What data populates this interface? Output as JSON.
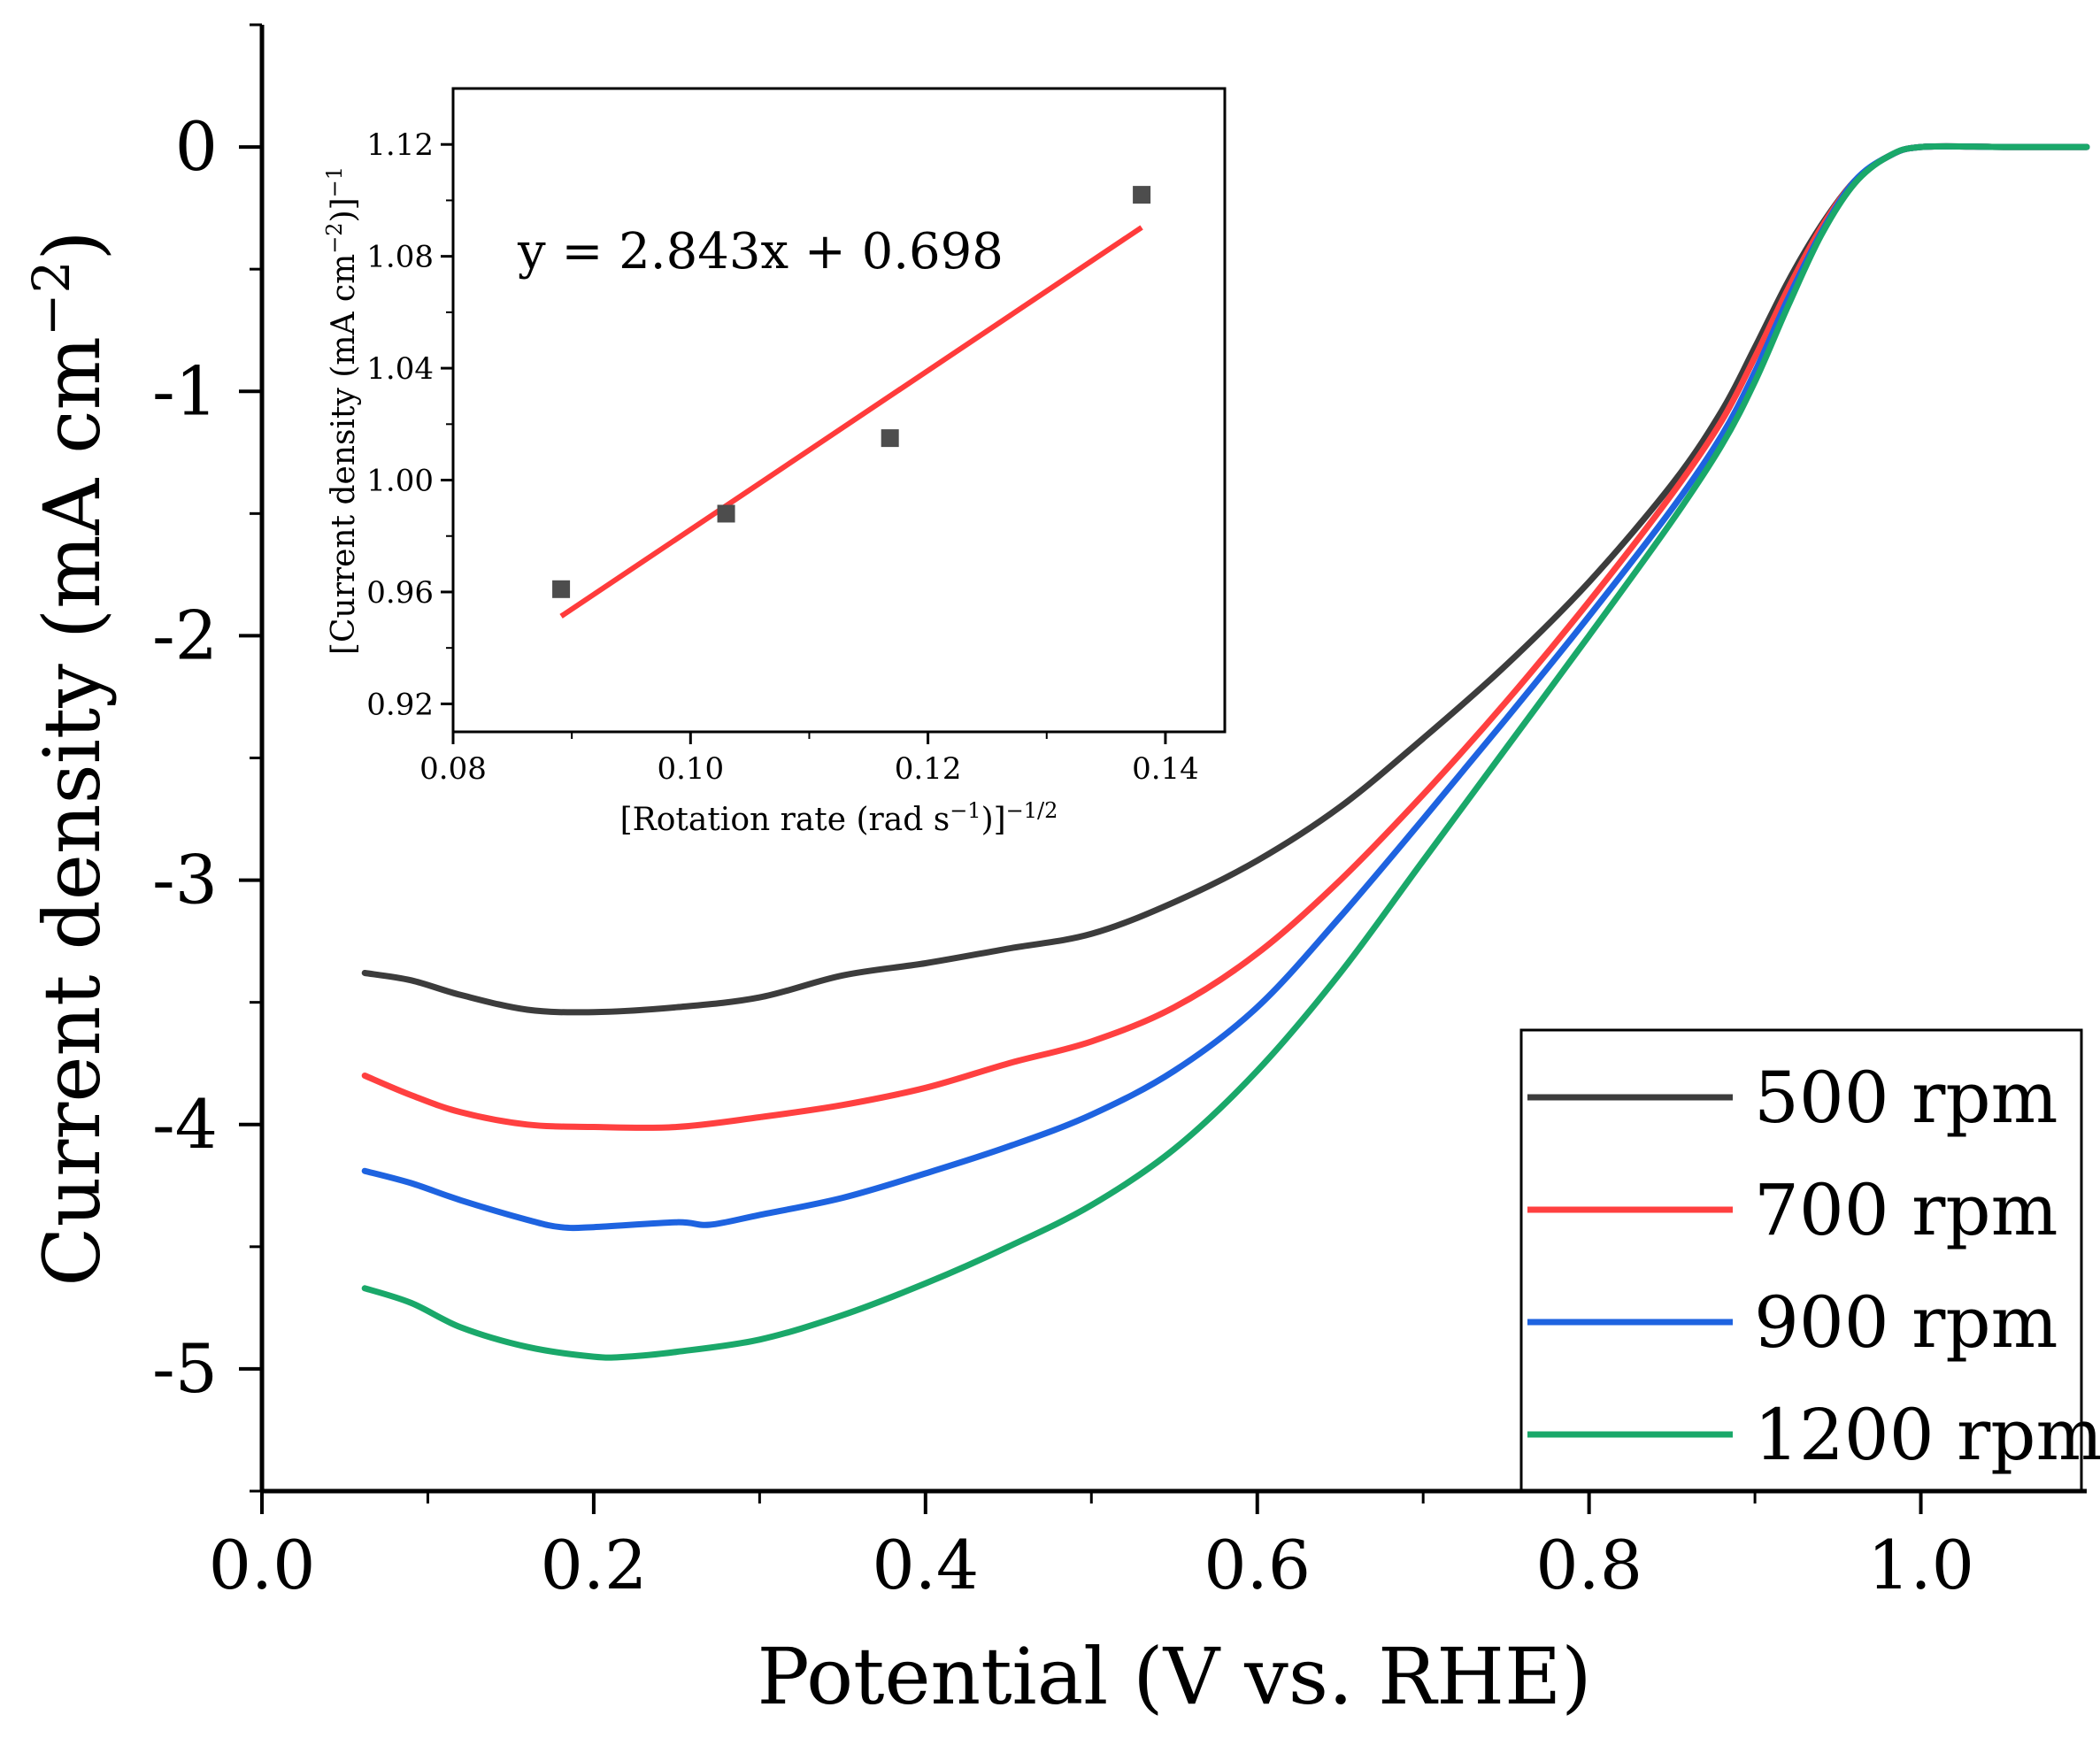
{
  "chart_data": {
    "type": "line",
    "xlabel": "Potential (V vs. RHE)",
    "ylabel": "Current density (mA cm",
    "ylabel_sup": "−2",
    "ylabel_close": ")",
    "xlim": [
      0.0,
      1.1
    ],
    "ylim": [
      -5.5,
      0.5
    ],
    "x_ticks": [
      "0.0",
      "0.2",
      "0.4",
      "0.6",
      "0.8",
      "1.0"
    ],
    "y_ticks": [
      "0",
      "-1",
      "-2",
      "-3",
      "-4",
      "-5"
    ],
    "x_tick_values": [
      0.0,
      0.2,
      0.4,
      0.6,
      0.8,
      1.0
    ],
    "y_tick_values": [
      0,
      -1,
      -2,
      -3,
      -4,
      -5
    ],
    "grid": false,
    "legend_position": "bottom-right",
    "series": [
      {
        "name": "500 rpm",
        "color": "#3c3c3c",
        "points": [
          [
            0.062,
            -3.38
          ],
          [
            0.09,
            -3.41
          ],
          [
            0.12,
            -3.47
          ],
          [
            0.16,
            -3.53
          ],
          [
            0.2,
            -3.54
          ],
          [
            0.25,
            -3.52
          ],
          [
            0.3,
            -3.48
          ],
          [
            0.35,
            -3.39
          ],
          [
            0.4,
            -3.34
          ],
          [
            0.45,
            -3.28
          ],
          [
            0.5,
            -3.22
          ],
          [
            0.55,
            -3.09
          ],
          [
            0.6,
            -2.92
          ],
          [
            0.65,
            -2.7
          ],
          [
            0.7,
            -2.42
          ],
          [
            0.75,
            -2.12
          ],
          [
            0.8,
            -1.78
          ],
          [
            0.85,
            -1.38
          ],
          [
            0.88,
            -1.08
          ],
          [
            0.9,
            -0.82
          ],
          [
            0.92,
            -0.55
          ],
          [
            0.94,
            -0.32
          ],
          [
            0.96,
            -0.14
          ],
          [
            0.98,
            -0.04
          ],
          [
            1.0,
            0.0
          ],
          [
            1.05,
            0.0
          ],
          [
            1.1,
            0.0
          ]
        ]
      },
      {
        "name": "700 rpm",
        "color": "#ff4040",
        "points": [
          [
            0.062,
            -3.8
          ],
          [
            0.09,
            -3.88
          ],
          [
            0.12,
            -3.95
          ],
          [
            0.16,
            -4.0
          ],
          [
            0.2,
            -4.01
          ],
          [
            0.25,
            -4.01
          ],
          [
            0.3,
            -3.97
          ],
          [
            0.35,
            -3.92
          ],
          [
            0.4,
            -3.85
          ],
          [
            0.45,
            -3.75
          ],
          [
            0.5,
            -3.66
          ],
          [
            0.55,
            -3.52
          ],
          [
            0.6,
            -3.3
          ],
          [
            0.65,
            -3.0
          ],
          [
            0.7,
            -2.65
          ],
          [
            0.75,
            -2.27
          ],
          [
            0.8,
            -1.86
          ],
          [
            0.85,
            -1.42
          ],
          [
            0.88,
            -1.12
          ],
          [
            0.9,
            -0.86
          ],
          [
            0.92,
            -0.58
          ],
          [
            0.94,
            -0.33
          ],
          [
            0.96,
            -0.14
          ],
          [
            0.98,
            -0.04
          ],
          [
            1.0,
            0.0
          ],
          [
            1.05,
            0.0
          ],
          [
            1.1,
            0.0
          ]
        ]
      },
      {
        "name": "900 rpm",
        "color": "#1e63e0",
        "points": [
          [
            0.062,
            -4.19
          ],
          [
            0.09,
            -4.24
          ],
          [
            0.12,
            -4.31
          ],
          [
            0.16,
            -4.39
          ],
          [
            0.18,
            -4.42
          ],
          [
            0.2,
            -4.42
          ],
          [
            0.25,
            -4.4
          ],
          [
            0.27,
            -4.41
          ],
          [
            0.3,
            -4.37
          ],
          [
            0.35,
            -4.3
          ],
          [
            0.4,
            -4.2
          ],
          [
            0.45,
            -4.09
          ],
          [
            0.5,
            -3.96
          ],
          [
            0.55,
            -3.78
          ],
          [
            0.6,
            -3.52
          ],
          [
            0.65,
            -3.15
          ],
          [
            0.7,
            -2.75
          ],
          [
            0.75,
            -2.34
          ],
          [
            0.8,
            -1.92
          ],
          [
            0.85,
            -1.48
          ],
          [
            0.88,
            -1.18
          ],
          [
            0.9,
            -0.92
          ],
          [
            0.92,
            -0.62
          ],
          [
            0.94,
            -0.35
          ],
          [
            0.96,
            -0.14
          ],
          [
            0.98,
            -0.04
          ],
          [
            1.0,
            0.0
          ],
          [
            1.05,
            0.0
          ],
          [
            1.1,
            0.0
          ]
        ]
      },
      {
        "name": "1200 rpm",
        "color": "#1aa86a",
        "points": [
          [
            0.062,
            -4.67
          ],
          [
            0.09,
            -4.73
          ],
          [
            0.12,
            -4.83
          ],
          [
            0.16,
            -4.91
          ],
          [
            0.2,
            -4.95
          ],
          [
            0.22,
            -4.95
          ],
          [
            0.25,
            -4.93
          ],
          [
            0.3,
            -4.88
          ],
          [
            0.35,
            -4.78
          ],
          [
            0.4,
            -4.65
          ],
          [
            0.45,
            -4.5
          ],
          [
            0.5,
            -4.33
          ],
          [
            0.55,
            -4.1
          ],
          [
            0.6,
            -3.78
          ],
          [
            0.65,
            -3.38
          ],
          [
            0.7,
            -2.92
          ],
          [
            0.75,
            -2.46
          ],
          [
            0.8,
            -2.0
          ],
          [
            0.85,
            -1.53
          ],
          [
            0.88,
            -1.22
          ],
          [
            0.9,
            -0.96
          ],
          [
            0.92,
            -0.65
          ],
          [
            0.94,
            -0.36
          ],
          [
            0.96,
            -0.15
          ],
          [
            0.98,
            -0.04
          ],
          [
            1.0,
            0.0
          ],
          [
            1.05,
            0.0
          ],
          [
            1.1,
            0.0
          ]
        ]
      }
    ],
    "inset": {
      "type": "scatter",
      "xlabel": "[Rotation rate (rad s",
      "xlabel_sup1": "−1",
      "xlabel_mid": ")]",
      "xlabel_sup2": "−1/2",
      "ylabel": "[Current density (mA cm",
      "ylabel_sup1": "−2",
      "ylabel_mid": ")]",
      "ylabel_sup2": "−1",
      "xlim": [
        0.08,
        0.145
      ],
      "ylim": [
        0.91,
        1.14
      ],
      "x_ticks": [
        "0.08",
        "0.10",
        "0.12",
        "0.14"
      ],
      "x_tick_values": [
        0.08,
        0.1,
        0.12,
        0.14
      ],
      "y_ticks": [
        "0.92",
        "0.96",
        "1.00",
        "1.04",
        "1.08",
        "1.12"
      ],
      "y_tick_values": [
        0.92,
        0.96,
        1.0,
        1.04,
        1.08,
        1.12
      ],
      "points": [
        [
          0.0891,
          0.961
        ],
        [
          0.103,
          0.988
        ],
        [
          0.1168,
          1.015
        ],
        [
          0.138,
          1.102
        ]
      ],
      "point_color": "#4d4d4d",
      "fit_equation": "y = 2.843x + 0.698",
      "fit_slope": 2.843,
      "fit_intercept": 0.698,
      "fit_x_range": [
        0.0891,
        0.138
      ],
      "fit_color": "#ff3b3b"
    }
  }
}
